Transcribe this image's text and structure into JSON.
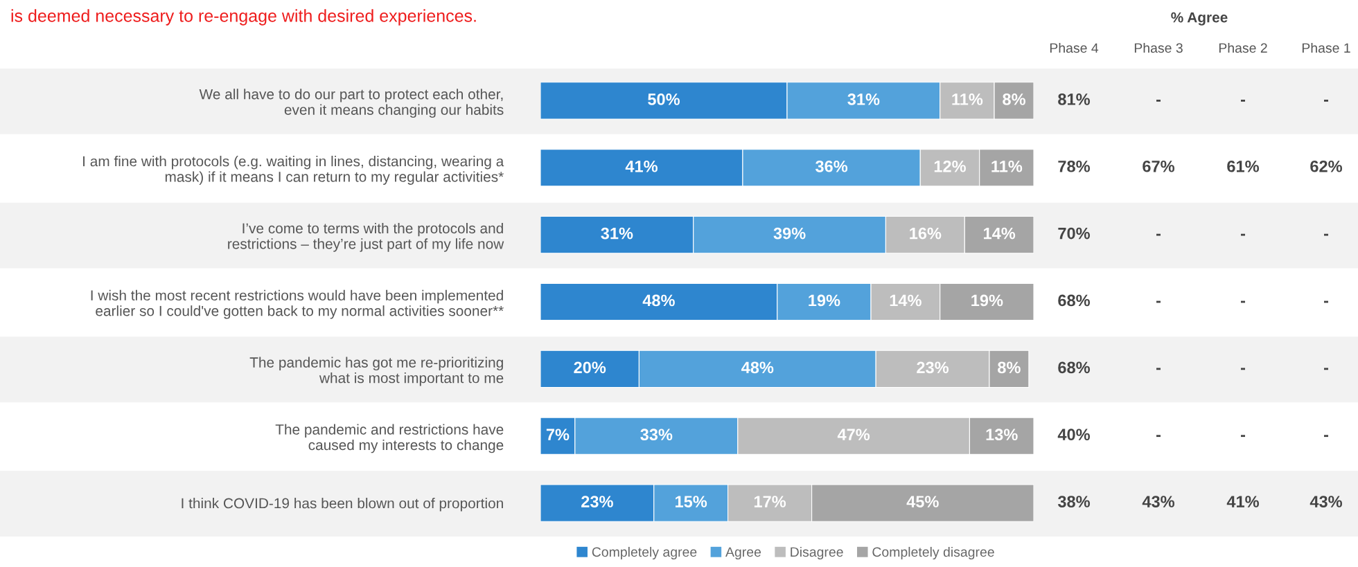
{
  "chart_data": {
    "type": "bar",
    "orientation": "horizontal",
    "stacked": true,
    "legend": "bottom",
    "title": "is deemed necessary to re-engage with desired experiences.",
    "categories": [
      "We all have to do our part to protect each other,\neven it means changing our habits",
      "I am fine with protocols (e.g. waiting in lines, distancing, wearing a\nmask) if it means I can return to my regular activities*",
      "I’ve come to terms with the protocols and\nrestrictions – they’re just part of my life now",
      "I wish the most recent restrictions would have been implemented\nearlier so I could've gotten back to my normal activities sooner**",
      "The pandemic has got me re-prioritizing\nwhat is most important to me",
      "The pandemic and restrictions have\ncaused my interests to change",
      "I think COVID-19 has been blown out of proportion"
    ],
    "series": [
      {
        "name": "Completely agree",
        "color": "#2e86cf",
        "values": [
          50,
          41,
          31,
          48,
          20,
          7,
          23
        ],
        "value_labels": [
          "50%",
          "41%",
          "31%",
          "48%",
          "20%",
          "7%",
          "23%"
        ]
      },
      {
        "name": "Agree",
        "color": "#53a2db",
        "values": [
          31,
          36,
          39,
          19,
          48,
          33,
          15
        ],
        "value_labels": [
          "31%",
          "36%",
          "39%",
          "19%",
          "48%",
          "33%",
          "15%"
        ]
      },
      {
        "name": "Disagree",
        "color": "#bdbdbd",
        "values": [
          11,
          12,
          16,
          14,
          23,
          47,
          17
        ],
        "value_labels": [
          "11%",
          "12%",
          "16%",
          "14%",
          "23%",
          "47%",
          "17%"
        ]
      },
      {
        "name": "Completely disagree",
        "color": "#a5a5a5",
        "values": [
          8,
          11,
          14,
          19,
          8,
          13,
          45
        ],
        "value_labels": [
          "8%",
          "11%",
          "14%",
          "19%",
          "8%",
          "13%",
          "45%"
        ]
      }
    ],
    "annotations": [
      "% Agree",
      "Phase 4",
      "Phase 3",
      "Phase 2",
      "Phase 1",
      "81%",
      "-",
      "-",
      "-",
      "78%",
      "67%",
      "61%",
      "62%",
      "70%",
      "-",
      "-",
      "-",
      "68%",
      "-",
      "-",
      "-",
      "68%",
      "-",
      "-",
      "-",
      "40%",
      "-",
      "-",
      "-",
      "38%",
      "43%",
      "41%",
      "43%"
    ]
  }
}
